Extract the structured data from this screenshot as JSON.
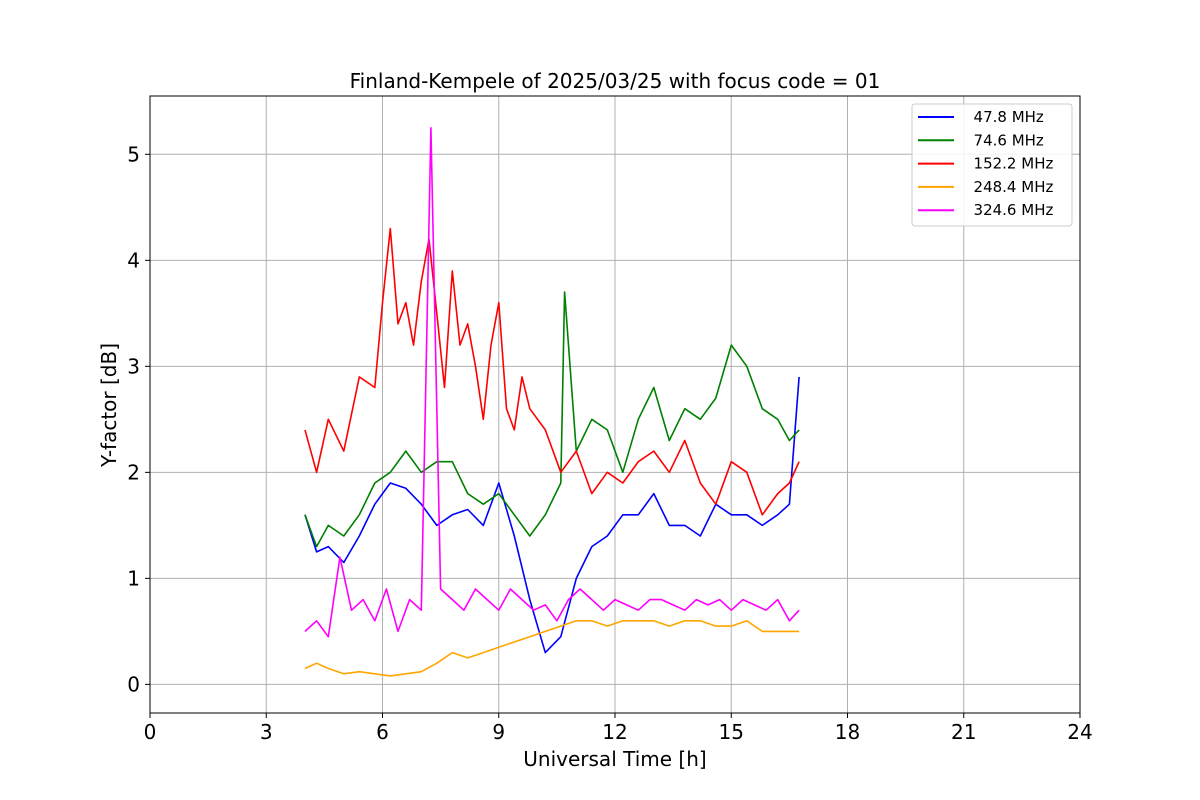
{
  "chart_data": {
    "type": "line",
    "title": "Finland-Kempele of 2025/03/25 with focus code = 01",
    "xlabel": "Universal Time [h]",
    "ylabel": "Y-factor [dB]",
    "xlim": [
      0,
      24
    ],
    "ylim": [
      -0.27,
      5.55
    ],
    "xticks": [
      0,
      3,
      6,
      9,
      12,
      15,
      18,
      21,
      24
    ],
    "yticks": [
      0,
      1,
      2,
      3,
      4,
      5
    ],
    "grid": true,
    "legend_position": "top-right",
    "series": [
      {
        "name": "  47.8 MHz",
        "color": "#0000ff",
        "x": [
          4.0,
          4.3,
          4.6,
          5.0,
          5.4,
          5.8,
          6.2,
          6.6,
          7.0,
          7.4,
          7.8,
          8.2,
          8.6,
          9.0,
          9.4,
          9.8,
          10.2,
          10.6,
          11.0,
          11.4,
          11.8,
          12.2,
          12.6,
          13.0,
          13.4,
          13.8,
          14.2,
          14.6,
          15.0,
          15.4,
          15.8,
          16.2,
          16.5,
          16.75
        ],
        "values": [
          1.6,
          1.25,
          1.3,
          1.15,
          1.4,
          1.7,
          1.9,
          1.85,
          1.7,
          1.5,
          1.6,
          1.65,
          1.5,
          1.9,
          1.4,
          0.8,
          0.3,
          0.45,
          1.0,
          1.3,
          1.4,
          1.6,
          1.6,
          1.8,
          1.5,
          1.5,
          1.4,
          1.7,
          1.6,
          1.6,
          1.5,
          1.6,
          1.7,
          2.9
        ]
      },
      {
        "name": "  74.6 MHz",
        "color": "#008000",
        "x": [
          4.0,
          4.3,
          4.6,
          5.0,
          5.4,
          5.8,
          6.2,
          6.6,
          7.0,
          7.4,
          7.8,
          8.2,
          8.6,
          9.0,
          9.4,
          9.8,
          10.2,
          10.6,
          10.7,
          11.0,
          11.4,
          11.8,
          12.2,
          12.6,
          13.0,
          13.4,
          13.8,
          14.2,
          14.6,
          15.0,
          15.4,
          15.8,
          16.2,
          16.5,
          16.75
        ],
        "values": [
          1.6,
          1.3,
          1.5,
          1.4,
          1.6,
          1.9,
          2.0,
          2.2,
          2.0,
          2.1,
          2.1,
          1.8,
          1.7,
          1.8,
          1.6,
          1.4,
          1.6,
          1.9,
          3.7,
          2.2,
          2.5,
          2.4,
          2.0,
          2.5,
          2.8,
          2.3,
          2.6,
          2.5,
          2.7,
          3.2,
          3.0,
          2.6,
          2.5,
          2.3,
          2.4
        ]
      },
      {
        "name": "  152.2 MHz",
        "color": "#ff0000",
        "x": [
          4.0,
          4.3,
          4.6,
          5.0,
          5.4,
          5.8,
          6.0,
          6.2,
          6.4,
          6.6,
          6.8,
          7.0,
          7.2,
          7.4,
          7.6,
          7.8,
          8.0,
          8.2,
          8.4,
          8.6,
          8.8,
          9.0,
          9.2,
          9.4,
          9.6,
          9.8,
          10.2,
          10.6,
          11.0,
          11.4,
          11.8,
          12.2,
          12.6,
          13.0,
          13.4,
          13.8,
          14.2,
          14.6,
          15.0,
          15.4,
          15.8,
          16.2,
          16.5,
          16.75
        ],
        "values": [
          2.4,
          2.0,
          2.5,
          2.2,
          2.9,
          2.8,
          3.6,
          4.3,
          3.4,
          3.6,
          3.2,
          3.8,
          4.2,
          3.5,
          2.8,
          3.9,
          3.2,
          3.4,
          3.0,
          2.5,
          3.2,
          3.6,
          2.6,
          2.4,
          2.9,
          2.6,
          2.4,
          2.0,
          2.2,
          1.8,
          2.0,
          1.9,
          2.1,
          2.2,
          2.0,
          2.3,
          1.9,
          1.7,
          2.1,
          2.0,
          1.6,
          1.8,
          1.9,
          2.1
        ]
      },
      {
        "name": "  248.4 MHz",
        "color": "#ffa500",
        "x": [
          4.0,
          4.3,
          4.6,
          5.0,
          5.4,
          5.8,
          6.2,
          6.6,
          7.0,
          7.4,
          7.8,
          8.2,
          8.6,
          9.0,
          9.4,
          9.8,
          10.2,
          10.6,
          11.0,
          11.4,
          11.8,
          12.2,
          12.6,
          13.0,
          13.4,
          13.8,
          14.2,
          14.6,
          15.0,
          15.4,
          15.8,
          16.2,
          16.5,
          16.75
        ],
        "values": [
          0.15,
          0.2,
          0.15,
          0.1,
          0.12,
          0.1,
          0.08,
          0.1,
          0.12,
          0.2,
          0.3,
          0.25,
          0.3,
          0.35,
          0.4,
          0.45,
          0.5,
          0.55,
          0.6,
          0.6,
          0.55,
          0.6,
          0.6,
          0.6,
          0.55,
          0.6,
          0.6,
          0.55,
          0.55,
          0.6,
          0.5,
          0.5,
          0.5,
          0.5
        ]
      },
      {
        "name": "  324.6 MHz",
        "color": "#ff00ff",
        "x": [
          4.0,
          4.3,
          4.6,
          4.9,
          5.2,
          5.5,
          5.8,
          6.1,
          6.4,
          6.7,
          7.0,
          7.25,
          7.5,
          7.8,
          8.1,
          8.4,
          8.7,
          9.0,
          9.3,
          9.6,
          9.9,
          10.2,
          10.5,
          10.8,
          11.1,
          11.4,
          11.7,
          12.0,
          12.3,
          12.6,
          12.9,
          13.2,
          13.5,
          13.8,
          14.1,
          14.4,
          14.7,
          15.0,
          15.3,
          15.6,
          15.9,
          16.2,
          16.5,
          16.75
        ],
        "values": [
          0.5,
          0.6,
          0.45,
          1.2,
          0.7,
          0.8,
          0.6,
          0.9,
          0.5,
          0.8,
          0.7,
          5.25,
          0.9,
          0.8,
          0.7,
          0.9,
          0.8,
          0.7,
          0.9,
          0.8,
          0.7,
          0.75,
          0.6,
          0.8,
          0.9,
          0.8,
          0.7,
          0.8,
          0.75,
          0.7,
          0.8,
          0.8,
          0.75,
          0.7,
          0.8,
          0.75,
          0.8,
          0.7,
          0.8,
          0.75,
          0.7,
          0.8,
          0.6,
          0.7
        ]
      }
    ]
  }
}
